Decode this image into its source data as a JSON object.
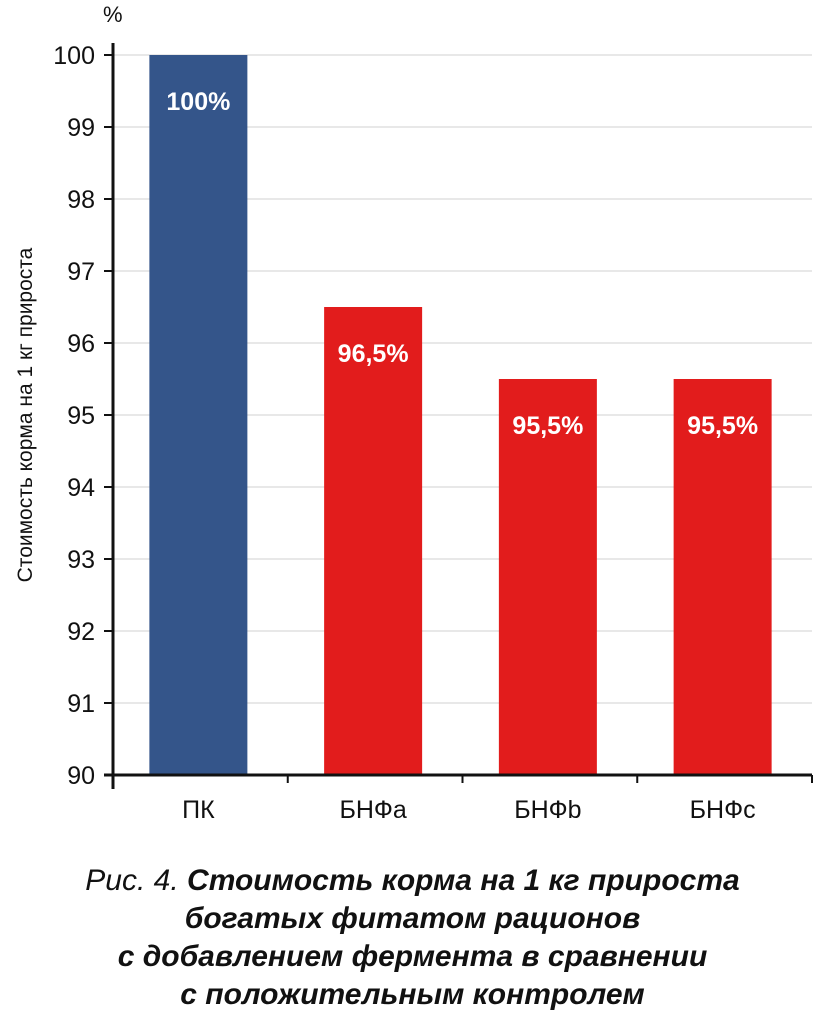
{
  "chart_data": {
    "type": "bar",
    "unit_label": "%",
    "ylabel": "Стоимость корма на 1 кг прироста",
    "xlabel": "",
    "ylim": [
      90,
      100
    ],
    "yticks": [
      90,
      91,
      92,
      93,
      94,
      95,
      96,
      97,
      98,
      99,
      100
    ],
    "grid": true,
    "categories": [
      "ПК",
      "БНФa",
      "БНФb",
      "БНФc"
    ],
    "values": [
      100,
      96.5,
      95.5,
      95.5
    ],
    "data_labels": [
      "100%",
      "96,5%",
      "95,5%",
      "95,5%"
    ],
    "colors": [
      "#34558a",
      "#e21c1c",
      "#e21c1c",
      "#e21c1c"
    ]
  },
  "caption": {
    "prefix": "Рис. 4.",
    "title_lines": [
      "Стоимость корма на 1 кг прироста",
      "богатых фитатом рационов",
      "с добавлением фермента в сравнении",
      "с положительным контролем"
    ]
  }
}
